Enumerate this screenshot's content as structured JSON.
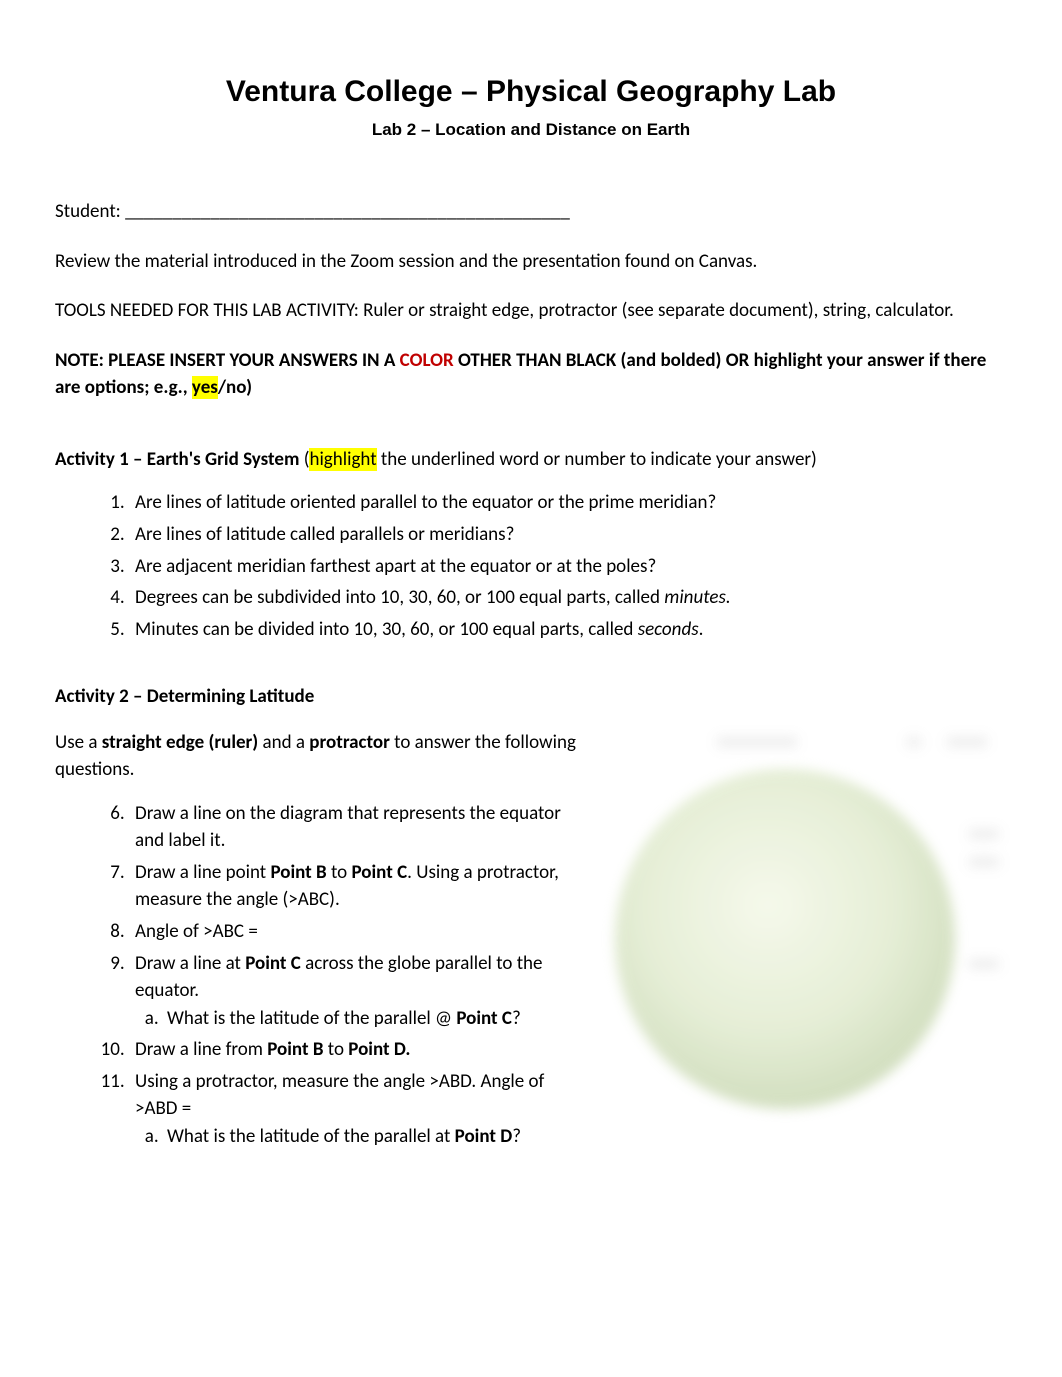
{
  "header": {
    "title": "Ventura College – Physical Geography Lab",
    "subtitle": "Lab 2 – Location and Distance on Earth"
  },
  "student": {
    "label": "Student:",
    "blank": " _______________________________________________"
  },
  "intro": {
    "review": "Review the material introduced in the Zoom session and the presentation found on Canvas.",
    "tools": "TOOLS NEEDED FOR THIS LAB ACTIVITY:  Ruler or straight edge, protractor (see separate document), string, calculator."
  },
  "note": {
    "pre": "NOTE:  PLEASE INSERT YOUR ANSWERS IN A ",
    "color_word": "COLOR",
    "mid": " OTHER THAN BLACK (and bolded) OR highlight your answer if there are options; e.g., ",
    "yes": "yes",
    "post": "/no)"
  },
  "activity1": {
    "title": "Activity 1 – Earth's Grid System",
    "lead_open": "  (",
    "lead_hl": "highlight",
    "lead_rest": " the underlined word or number to indicate your answer)",
    "q1": "Are lines of latitude oriented parallel to the equator or the prime meridian?",
    "q2": "Are lines of latitude called parallels or meridians?",
    "q3": "Are adjacent meridian farthest apart at the equator or at the poles?",
    "q4_a": "Degrees can be subdivided into 10, 30, 60, or 100 equal parts, called ",
    "q4_b": "minutes.",
    "q5_a": "Minutes can be divided into 10, 30, 60, or 100 equal parts, called ",
    "q5_b": "seconds",
    "q5_c": "."
  },
  "activity2": {
    "title": "Activity 2 – Determining Latitude",
    "intro_a": "Use a ",
    "intro_b": "straight edge (ruler)",
    "intro_c": " and a ",
    "intro_d": "protractor",
    "intro_e": " to answer the following questions.",
    "q6": "Draw a line on the diagram that represents the equator and label it.",
    "q7_a": "Draw a line point ",
    "q7_b": "Point B",
    "q7_c": " to ",
    "q7_d": "Point C",
    "q7_e": ". Using a protractor, measure the angle (>ABC).",
    "q8": "Angle of >ABC =",
    "q9_a": "Draw a line at ",
    "q9_b": "Point C",
    "q9_c": " across the globe parallel to the equator.",
    "q9_sub_a": "What is the latitude of the parallel @ ",
    "q9_sub_b": "Point C",
    "q9_sub_c": "?",
    "q10_a": "Draw a line from ",
    "q10_b": "Point B",
    "q10_c": " to ",
    "q10_d": "Point D.",
    "q11": "Using a protractor, measure the angle >ABD.  Angle of >ABD =",
    "q11_sub_a": "What is the latitude of the parallel at ",
    "q11_sub_b": "Point D",
    "q11_sub_c": "?"
  },
  "diagram": {
    "type": "globe-illustration",
    "globe_fill_colors": [
      "#f4f8e8",
      "#e2ecd0",
      "#c9d8b3",
      "#b6c99c"
    ],
    "background_color": "#ffffff",
    "blurred": true,
    "labels_redacted": true
  },
  "colors": {
    "highlight": "#ffff00",
    "note_color_word": "#c00000",
    "text": "#000000",
    "background": "#ffffff"
  }
}
